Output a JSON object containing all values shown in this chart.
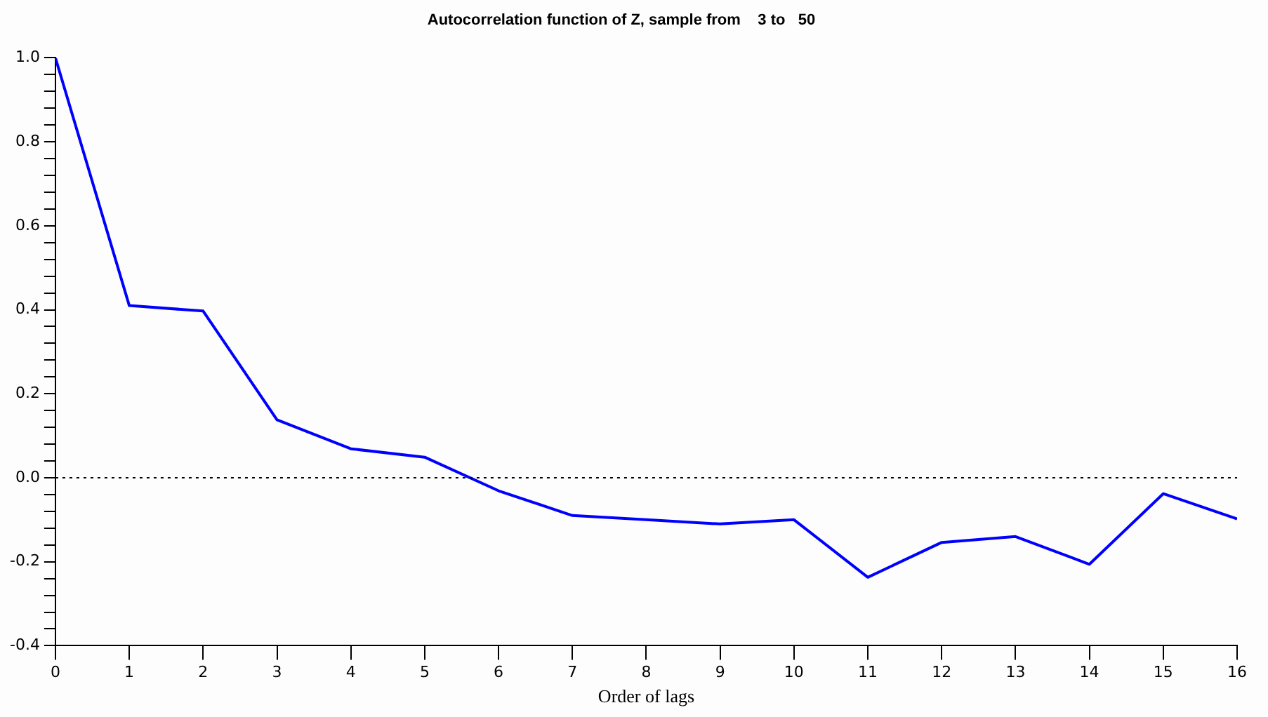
{
  "chart_data": {
    "type": "line",
    "title": "Autocorrelation function of Z, sample from    3 to   50",
    "xlabel": "Order of lags",
    "x": [
      0,
      1,
      2,
      3,
      4,
      5,
      6,
      7,
      8,
      9,
      10,
      11,
      12,
      13,
      14,
      15,
      16
    ],
    "series": [
      {
        "color": "#0000ff",
        "values": [
          1.0,
          0.41,
          0.397,
          0.138,
          0.069,
          0.049,
          -0.031,
          -0.09,
          -0.1,
          -0.11,
          -0.1,
          -0.237,
          -0.154,
          -0.14,
          -0.206,
          -0.038,
          -0.098
        ]
      }
    ],
    "xlim": [
      0,
      16
    ],
    "xticks": [
      0,
      1,
      2,
      3,
      4,
      5,
      6,
      7,
      8,
      9,
      10,
      11,
      12,
      13,
      14,
      15,
      16
    ],
    "ylim": [
      -0.4,
      1.0
    ],
    "yticks": [
      {
        "value": -0.4,
        "label": "-0.4"
      },
      {
        "value": -0.36,
        "label": null
      },
      {
        "value": -0.32,
        "label": null
      },
      {
        "value": -0.28,
        "label": null
      },
      {
        "value": -0.24,
        "label": null
      },
      {
        "value": -0.2,
        "label": "-0.2"
      },
      {
        "value": -0.16,
        "label": null
      },
      {
        "value": -0.12,
        "label": null
      },
      {
        "value": -0.08,
        "label": null
      },
      {
        "value": -0.04,
        "label": null
      },
      {
        "value": 0,
        "label": "0.0"
      },
      {
        "value": 0.04,
        "label": null
      },
      {
        "value": 0.08,
        "label": null
      },
      {
        "value": 0.12,
        "label": null
      },
      {
        "value": 0.16,
        "label": null
      },
      {
        "value": 0.2,
        "label": "0.2"
      },
      {
        "value": 0.24,
        "label": null
      },
      {
        "value": 0.28,
        "label": null
      },
      {
        "value": 0.32,
        "label": null
      },
      {
        "value": 0.36,
        "label": null
      },
      {
        "value": 0.4,
        "label": "0.4"
      },
      {
        "value": 0.44,
        "label": null
      },
      {
        "value": 0.48,
        "label": null
      },
      {
        "value": 0.52,
        "label": null
      },
      {
        "value": 0.56,
        "label": null
      },
      {
        "value": 0.6,
        "label": "0.6"
      },
      {
        "value": 0.64,
        "label": null
      },
      {
        "value": 0.68,
        "label": null
      },
      {
        "value": 0.72,
        "label": null
      },
      {
        "value": 0.76,
        "label": null
      },
      {
        "value": 0.8,
        "label": "0.8"
      },
      {
        "value": 0.84,
        "label": null
      },
      {
        "value": 0.88,
        "label": null
      },
      {
        "value": 0.92,
        "label": null
      },
      {
        "value": 0.96,
        "label": null
      },
      {
        "value": 1.0,
        "label": "1.0"
      }
    ],
    "ref_lines": [
      {
        "axis": "y",
        "value": 0,
        "line_style": "dotted",
        "color": "#000000"
      }
    ],
    "grid": false,
    "legend": false,
    "marker": "none",
    "line_style": "solid"
  }
}
